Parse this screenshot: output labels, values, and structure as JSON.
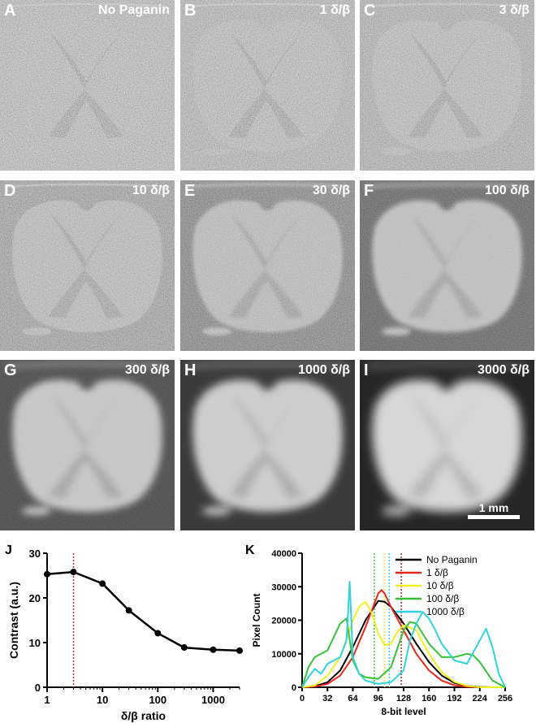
{
  "panels": [
    {
      "letter": "A",
      "label": "No Paganin",
      "level": 0.0,
      "highlight": false
    },
    {
      "letter": "B",
      "label": "1 δ/β",
      "level": 0.03,
      "highlight": false
    },
    {
      "letter": "C",
      "label": "3 δ/β",
      "level": 0.06,
      "highlight": true
    },
    {
      "letter": "D",
      "label": "10 δ/β",
      "level": 0.15,
      "highlight": false
    },
    {
      "letter": "E",
      "label": "30 δ/β",
      "level": 0.3,
      "highlight": false
    },
    {
      "letter": "F",
      "label": "100 δ/β",
      "level": 0.5,
      "highlight": false
    },
    {
      "letter": "G",
      "label": "300 δ/β",
      "level": 0.7,
      "highlight": false
    },
    {
      "letter": "H",
      "label": "1000 δ/β",
      "level": 0.85,
      "highlight": false
    },
    {
      "letter": "I",
      "label": "3000 δ/β",
      "level": 1.0,
      "highlight": false
    }
  ],
  "scale_bar_label": "1 mm",
  "chart_data": [
    {
      "panel": "J",
      "type": "line",
      "xlabel": "δ/β ratio",
      "ylabel": "Contrast (a.u.)",
      "xscale": "log",
      "xlim": [
        1,
        3000
      ],
      "ylim": [
        0,
        30
      ],
      "xticks": [
        1,
        10,
        100,
        1000
      ],
      "xticklabels": [
        "1",
        "10",
        "100",
        "1000"
      ],
      "yticks": [
        0,
        10,
        20,
        30
      ],
      "x": [
        1,
        3,
        10,
        30,
        100,
        300,
        1000,
        3000
      ],
      "y": [
        25.3,
        25.8,
        23.2,
        17.2,
        12.1,
        8.9,
        8.4,
        8.2
      ],
      "reference_line": {
        "x": 3,
        "color": "#cc2222",
        "style": "dotted"
      },
      "color": "#000000"
    },
    {
      "panel": "K",
      "type": "line",
      "xlabel": "8-bit level",
      "ylabel": "Pixel Count",
      "xlim": [
        0,
        256
      ],
      "ylim": [
        0,
        40000
      ],
      "xticks": [
        0,
        32,
        64,
        96,
        128,
        160,
        192,
        224,
        256
      ],
      "yticks": [
        0,
        10000,
        20000,
        30000,
        40000
      ],
      "legend_position": "top-right",
      "series": [
        {
          "name": "No Paganin",
          "color": "#000000",
          "x": [
            0,
            16,
            32,
            48,
            64,
            80,
            96,
            104,
            112,
            128,
            144,
            160,
            176,
            192,
            208,
            224,
            240,
            256
          ],
          "y": [
            0,
            300,
            1500,
            5000,
            12000,
            20000,
            25800,
            25500,
            24000,
            19000,
            13000,
            7500,
            3500,
            1300,
            400,
            100,
            0,
            0
          ]
        },
        {
          "name": "1 δ/β",
          "color": "#e8261c",
          "x": [
            0,
            16,
            32,
            48,
            64,
            80,
            96,
            100,
            104,
            112,
            128,
            144,
            160,
            176,
            192,
            208,
            224,
            256
          ],
          "y": [
            0,
            200,
            1000,
            3500,
            9000,
            18000,
            28000,
            29000,
            28000,
            24000,
            17000,
            10000,
            5000,
            2000,
            600,
            150,
            0,
            0
          ]
        },
        {
          "name": "10 δ/β",
          "color": "#f2ef1e",
          "x": [
            0,
            16,
            32,
            48,
            64,
            72,
            80,
            88,
            96,
            104,
            112,
            120,
            128,
            144,
            160,
            176,
            192,
            208,
            224,
            256
          ],
          "y": [
            0,
            500,
            3500,
            9000,
            20000,
            24000,
            25500,
            22000,
            16000,
            12500,
            13000,
            16500,
            18500,
            17000,
            10000,
            4500,
            1600,
            400,
            0,
            0
          ]
        },
        {
          "name": "100 δ/β",
          "color": "#35c335",
          "x": [
            0,
            8,
            16,
            32,
            48,
            56,
            64,
            72,
            80,
            96,
            112,
            128,
            136,
            144,
            160,
            176,
            192,
            208,
            216,
            224,
            240,
            256
          ],
          "y": [
            0,
            6000,
            9000,
            11000,
            19000,
            20500,
            8000,
            4000,
            3000,
            2500,
            6000,
            17000,
            19500,
            19000,
            13000,
            9000,
            9000,
            10000,
            9500,
            7500,
            2000,
            0
          ]
        },
        {
          "name": "1000 δ/β",
          "color": "#2fd3e0",
          "x": [
            0,
            8,
            16,
            24,
            32,
            48,
            56,
            60,
            64,
            72,
            80,
            96,
            112,
            128,
            136,
            144,
            152,
            160,
            168,
            176,
            192,
            208,
            224,
            232,
            240,
            248,
            256
          ],
          "y": [
            0,
            3000,
            5500,
            4000,
            7000,
            9000,
            14000,
            31500,
            9000,
            4000,
            2000,
            1000,
            1500,
            5000,
            14000,
            19000,
            22500,
            20500,
            17000,
            13000,
            8000,
            7000,
            14000,
            17500,
            12000,
            4000,
            0
          ]
        }
      ],
      "reference_lines": [
        {
          "x": 91,
          "color": "#35c335",
          "style": "dotted"
        },
        {
          "x": 104,
          "color": "#f2ef1e",
          "style": "dotted"
        },
        {
          "x": 110,
          "color": "#2fd3e0",
          "style": "dotted"
        },
        {
          "x": 125,
          "color": "#cc2222",
          "style": "dotted"
        }
      ]
    }
  ]
}
